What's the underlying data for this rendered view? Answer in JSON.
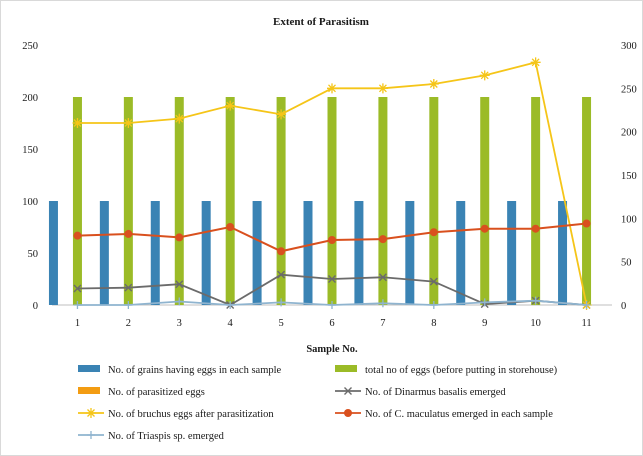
{
  "chart_data": {
    "type": "bar",
    "title": "Extent of Parasitism",
    "xlabel": "Sample No.",
    "ylabel": "",
    "categories": [
      "1",
      "2",
      "3",
      "4",
      "5",
      "6",
      "7",
      "8",
      "9",
      "10",
      "11"
    ],
    "ylim_left": [
      0,
      250
    ],
    "yticks_left": [
      "0",
      "50",
      "100",
      "150",
      "200",
      "250"
    ],
    "ylim_right": [
      0,
      300
    ],
    "yticks_right": [
      "0",
      "50",
      "100",
      "150",
      "200",
      "250",
      "300"
    ],
    "grid": false,
    "legend_position": "bottom",
    "series": [
      {
        "name": "No. of grains having eggs in each sample",
        "kind": "bar",
        "axis": "left",
        "color": "#3a83b4",
        "values": [
          100,
          100,
          100,
          100,
          100,
          100,
          100,
          100,
          100,
          100,
          100
        ]
      },
      {
        "name": "total no of eggs (before putting in storehouse)",
        "kind": "bar",
        "axis": "left",
        "color": "#9bbb27",
        "values": [
          200,
          200,
          200,
          200,
          200,
          200,
          200,
          200,
          200,
          200,
          200
        ]
      },
      {
        "name": "No. of parasitized eggs",
        "kind": "bar",
        "axis": "left",
        "color": "#f39c12",
        "values": [
          0,
          0,
          0,
          0,
          0,
          0,
          0,
          0,
          0,
          0,
          0
        ]
      },
      {
        "name": "No. of Dinarmus basalis emerged",
        "kind": "line",
        "axis": "right",
        "color": "#6b6b6b",
        "marker": "x",
        "values": [
          19,
          20,
          24,
          0,
          35,
          30,
          32,
          27,
          1,
          5,
          0
        ]
      },
      {
        "name": "No. of bruchus eggs after parasitization",
        "kind": "line",
        "axis": "right",
        "color": "#f5c518",
        "marker": "star",
        "values": [
          210,
          210,
          215,
          230,
          220,
          250,
          250,
          255,
          265,
          280,
          0
        ]
      },
      {
        "name": "No. of C. maculatus emerged in each sample",
        "kind": "line",
        "axis": "right",
        "color": "#d9501e",
        "marker": "circle",
        "values": [
          80,
          82,
          78,
          90,
          62,
          75,
          76,
          84,
          88,
          88,
          94
        ]
      },
      {
        "name": "No. of Triaspis sp. emerged",
        "kind": "line",
        "axis": "right",
        "color": "#8fb4cf",
        "marker": "plus",
        "values": [
          0,
          0,
          4,
          0,
          3,
          0,
          2,
          0,
          3,
          5,
          0
        ]
      }
    ]
  }
}
